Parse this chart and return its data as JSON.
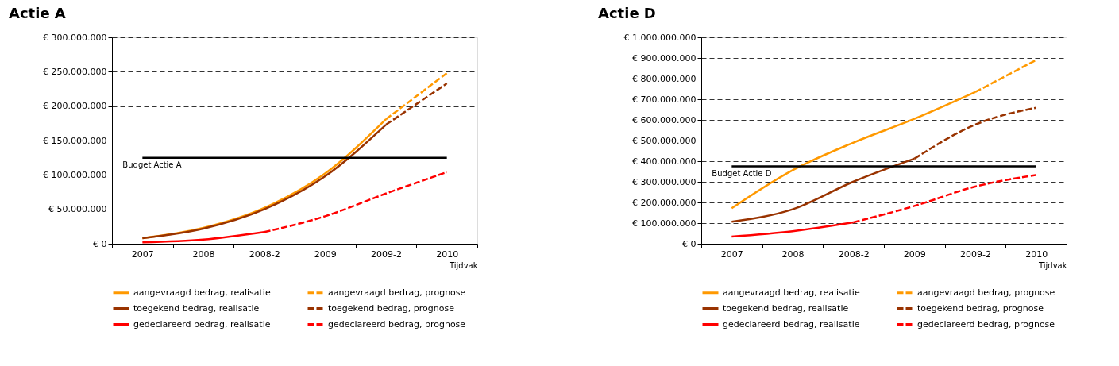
{
  "chart_data": [
    {
      "type": "line",
      "title": "Actie A",
      "xlabel": "Tijdvak",
      "categories": [
        "2007",
        "2008",
        "2008-2",
        "2009",
        "2009-2",
        "2010"
      ],
      "ylim": [
        0,
        300000000
      ],
      "yticks": [
        {
          "value": 0,
          "label": "€ 0"
        },
        {
          "value": 50000000,
          "label": "€ 50.000.000"
        },
        {
          "value": 100000000,
          "label": "€ 100.000.000"
        },
        {
          "value": 150000000,
          "label": "€ 150.000.000"
        },
        {
          "value": 200000000,
          "label": "€ 200.000.000"
        },
        {
          "value": 250000000,
          "label": "€ 250.000.000"
        },
        {
          "value": 300000000,
          "label": "€ 300.000.000"
        }
      ],
      "grid": "y",
      "legend": "bottom",
      "series": [
        {
          "name": "aangevraagd bedrag, realisatie",
          "color": "#ff9900",
          "line_style": "solid",
          "values": [
            8000000,
            23000000,
            52000000,
            102000000,
            181000000,
            null
          ]
        },
        {
          "name": "aangevraagd bedrag, prognose",
          "color": "#ff9900",
          "line_style": "dashed",
          "values": [
            null,
            null,
            null,
            null,
            181000000,
            248000000
          ]
        },
        {
          "name": "toegekend bedrag, realisatie",
          "color": "#993300",
          "line_style": "solid",
          "values": [
            8000000,
            22000000,
            50000000,
            98000000,
            173000000,
            null
          ]
        },
        {
          "name": "toegekend bedrag, prognose",
          "color": "#993300",
          "line_style": "dashed",
          "values": [
            null,
            null,
            null,
            null,
            173000000,
            233000000
          ]
        },
        {
          "name": "gedeclareerd bedrag, realisatie",
          "color": "#ff0000",
          "line_style": "solid",
          "values": [
            2000000,
            6000000,
            17000000,
            null,
            null,
            null
          ]
        },
        {
          "name": "gedeclareerd bedrag, prognose",
          "color": "#ff0000",
          "line_style": "dashed",
          "values": [
            null,
            null,
            17000000,
            40000000,
            73000000,
            104000000
          ]
        }
      ],
      "ref_lines": [
        {
          "axis": "y",
          "value": 125000000,
          "label": "Budget Actie A",
          "color": "#000000"
        }
      ]
    },
    {
      "type": "line",
      "title": "Actie D",
      "xlabel": "Tijdvak",
      "categories": [
        "2007",
        "2008",
        "2008-2",
        "2009",
        "2009-2",
        "2010"
      ],
      "ylim": [
        0,
        1000000000
      ],
      "yticks": [
        {
          "value": 0,
          "label": "€ 0"
        },
        {
          "value": 100000000,
          "label": "€ 100.000.000"
        },
        {
          "value": 200000000,
          "label": "€ 200.000.000"
        },
        {
          "value": 300000000,
          "label": "€ 300.000.000"
        },
        {
          "value": 400000000,
          "label": "€ 400.000.000"
        },
        {
          "value": 500000000,
          "label": "€ 500.000.000"
        },
        {
          "value": 600000000,
          "label": "€ 600.000.000"
        },
        {
          "value": 700000000,
          "label": "€ 700.000.000"
        },
        {
          "value": 800000000,
          "label": "€ 800.000.000"
        },
        {
          "value": 900000000,
          "label": "€ 900.000.000"
        },
        {
          "value": 1000000000,
          "label": "€ 1.000.000.000"
        }
      ],
      "grid": "y",
      "legend": "bottom",
      "series": [
        {
          "name": "aangevraagd bedrag, realisatie",
          "color": "#ff9900",
          "line_style": "solid",
          "values": [
            172000000,
            356000000,
            490000000,
            605000000,
            735000000,
            null
          ]
        },
        {
          "name": "aangevraagd bedrag, prognose",
          "color": "#ff9900",
          "line_style": "dashed",
          "values": [
            null,
            null,
            null,
            null,
            735000000,
            890000000
          ]
        },
        {
          "name": "toegekend bedrag, realisatie",
          "color": "#993300",
          "line_style": "solid",
          "values": [
            107000000,
            167000000,
            301000000,
            412000000,
            null,
            null
          ]
        },
        {
          "name": "toegekend bedrag, prognose",
          "color": "#993300",
          "line_style": "dashed",
          "values": [
            null,
            null,
            null,
            412000000,
            577000000,
            659000000
          ]
        },
        {
          "name": "gedeclareerd bedrag, realisatie",
          "color": "#ff0000",
          "line_style": "solid",
          "values": [
            35000000,
            61000000,
            104000000,
            null,
            null,
            null
          ]
        },
        {
          "name": "gedeclareerd bedrag, prognose",
          "color": "#ff0000",
          "line_style": "dashed",
          "values": [
            null,
            null,
            104000000,
            183000000,
            277000000,
            333000000
          ]
        }
      ],
      "ref_lines": [
        {
          "axis": "y",
          "value": 375000000,
          "label": "Budget Actie D",
          "color": "#000000"
        }
      ]
    }
  ]
}
